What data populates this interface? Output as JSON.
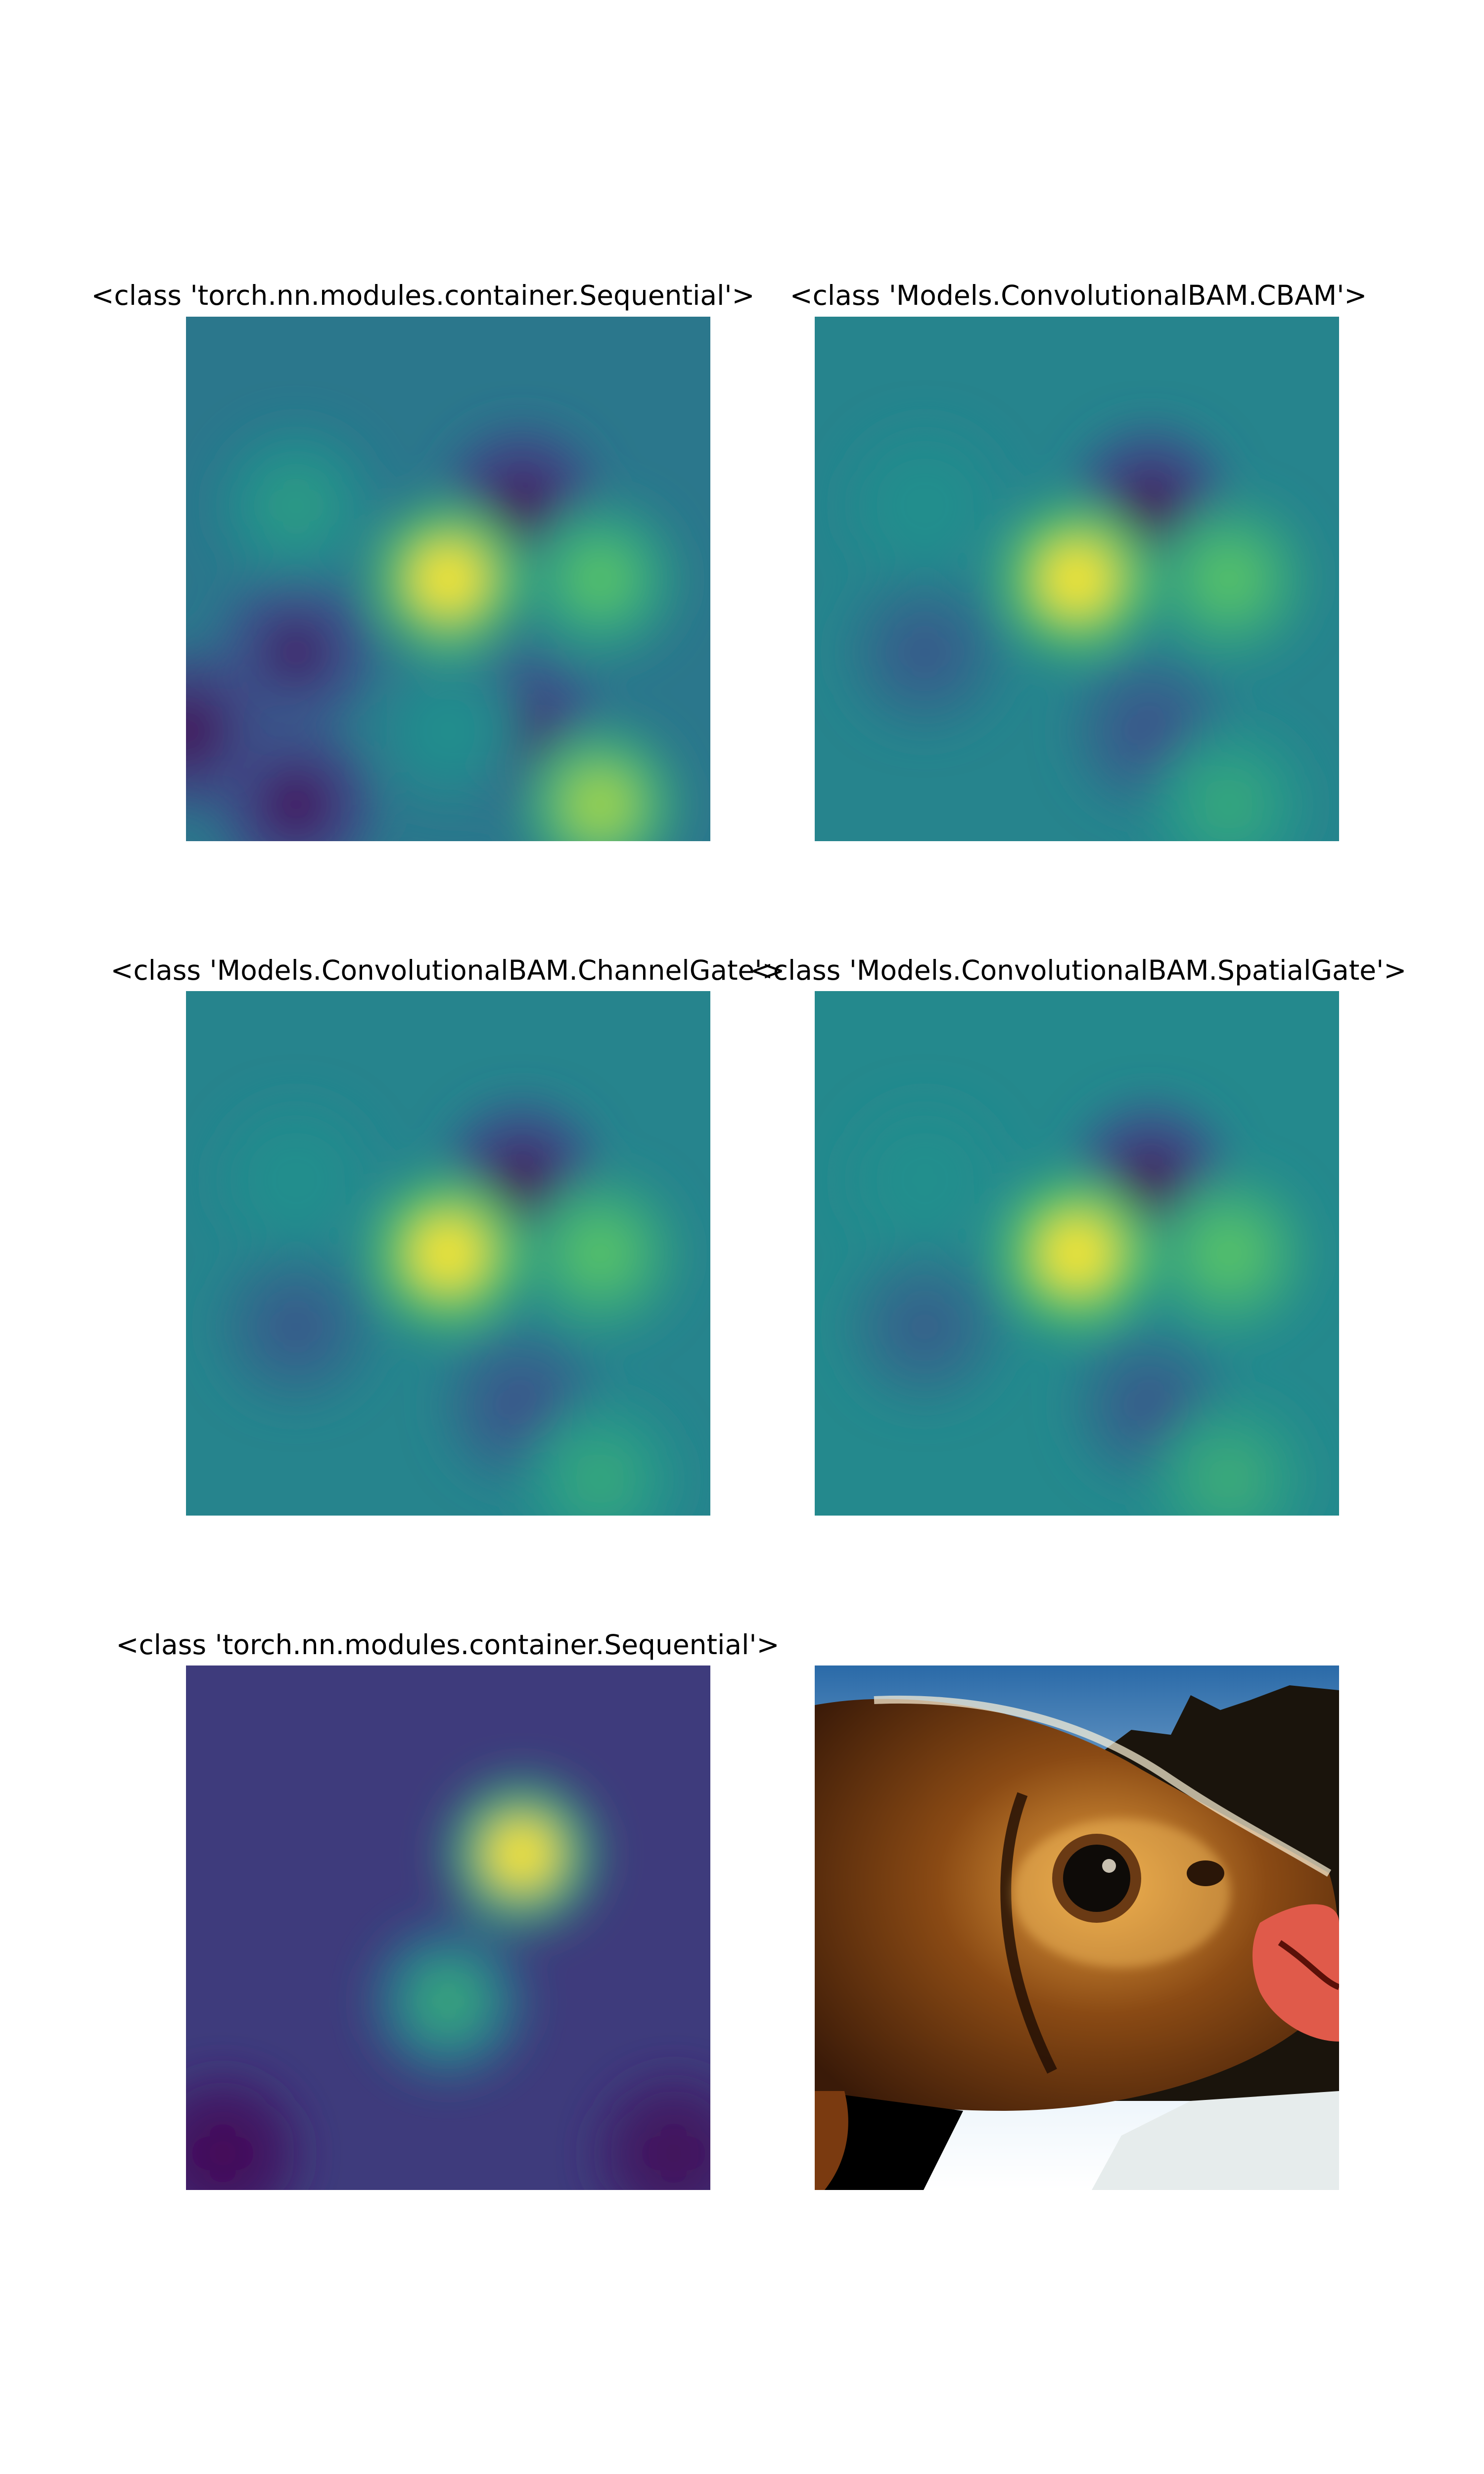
{
  "chart_data": [
    {
      "type": "heatmap",
      "title": "<class 'torch.nn.modules.container.Sequential'>",
      "colormap": "viridis",
      "hotspots": [
        {
          "x": 0.5,
          "y": 0.5,
          "level": 1.0
        },
        {
          "x": 0.79,
          "y": 0.5,
          "level": 0.72
        },
        {
          "x": 0.21,
          "y": 0.36,
          "level": 0.55
        },
        {
          "x": 0.5,
          "y": 0.79,
          "level": 0.5
        },
        {
          "x": 0.79,
          "y": 0.93,
          "level": 0.85
        }
      ],
      "coldspots": [
        {
          "x": 0.64,
          "y": 0.36,
          "level": 0.05
        },
        {
          "x": 0.21,
          "y": 0.64,
          "level": 0.1
        },
        {
          "x": 0.64,
          "y": 0.79,
          "level": 0.12
        },
        {
          "x": 0.0,
          "y": 0.79,
          "level": 0.02
        },
        {
          "x": 0.21,
          "y": 0.93,
          "level": 0.05
        }
      ],
      "background_level": 0.4
    },
    {
      "type": "heatmap",
      "title": "<class 'Models.ConvolutionalBAM.CBAM'>",
      "colormap": "viridis",
      "hotspots": [
        {
          "x": 0.5,
          "y": 0.5,
          "level": 1.0
        },
        {
          "x": 0.79,
          "y": 0.5,
          "level": 0.72
        },
        {
          "x": 0.21,
          "y": 0.36,
          "level": 0.5
        },
        {
          "x": 0.79,
          "y": 0.93,
          "level": 0.6
        }
      ],
      "coldspots": [
        {
          "x": 0.64,
          "y": 0.36,
          "level": 0.03
        },
        {
          "x": 0.21,
          "y": 0.64,
          "level": 0.28
        },
        {
          "x": 0.64,
          "y": 0.79,
          "level": 0.25
        }
      ],
      "background_level": 0.45
    },
    {
      "type": "heatmap",
      "title": "<class 'Models.ConvolutionalBAM.ChannelGate'>",
      "colormap": "viridis",
      "hotspots": [
        {
          "x": 0.5,
          "y": 0.5,
          "level": 1.0
        },
        {
          "x": 0.79,
          "y": 0.5,
          "level": 0.72
        },
        {
          "x": 0.21,
          "y": 0.36,
          "level": 0.5
        },
        {
          "x": 0.79,
          "y": 0.93,
          "level": 0.6
        }
      ],
      "coldspots": [
        {
          "x": 0.64,
          "y": 0.36,
          "level": 0.03
        },
        {
          "x": 0.21,
          "y": 0.64,
          "level": 0.28
        },
        {
          "x": 0.64,
          "y": 0.79,
          "level": 0.25
        }
      ],
      "background_level": 0.45
    },
    {
      "type": "heatmap",
      "title": "<class 'Models.ConvolutionalBAM.SpatialGate'>",
      "colormap": "viridis",
      "hotspots": [
        {
          "x": 0.5,
          "y": 0.5,
          "level": 1.0
        },
        {
          "x": 0.79,
          "y": 0.5,
          "level": 0.72
        },
        {
          "x": 0.21,
          "y": 0.36,
          "level": 0.5
        },
        {
          "x": 0.79,
          "y": 0.93,
          "level": 0.62
        }
      ],
      "coldspots": [
        {
          "x": 0.64,
          "y": 0.36,
          "level": 0.03
        },
        {
          "x": 0.21,
          "y": 0.64,
          "level": 0.3
        },
        {
          "x": 0.64,
          "y": 0.79,
          "level": 0.28
        }
      ],
      "background_level": 0.47
    },
    {
      "type": "heatmap",
      "title": "<class 'torch.nn.modules.container.Sequential'>",
      "colormap": "viridis",
      "hotspots": [
        {
          "x": 0.64,
          "y": 0.36,
          "level": 1.0
        },
        {
          "x": 0.5,
          "y": 0.64,
          "level": 0.6
        }
      ],
      "coldspots": [
        {
          "x": 0.07,
          "y": 0.93,
          "level": 0.0
        },
        {
          "x": 0.93,
          "y": 0.93,
          "level": 0.02
        }
      ],
      "background_level": 0.18
    }
  ],
  "photo": {
    "subject": "fish",
    "colors": {
      "sky": "#d8eaf7",
      "trees": "#1a140c",
      "body_dark": "#3a1a08",
      "body_mid": "#8a4a14",
      "body_light": "#e6a040",
      "eye": "#0e0b08",
      "lip": "#e05a4a",
      "water": "#e6ecec"
    }
  },
  "colormap_stops": [
    "#440154",
    "#3b528b",
    "#21908d",
    "#5dc962",
    "#fde725"
  ]
}
